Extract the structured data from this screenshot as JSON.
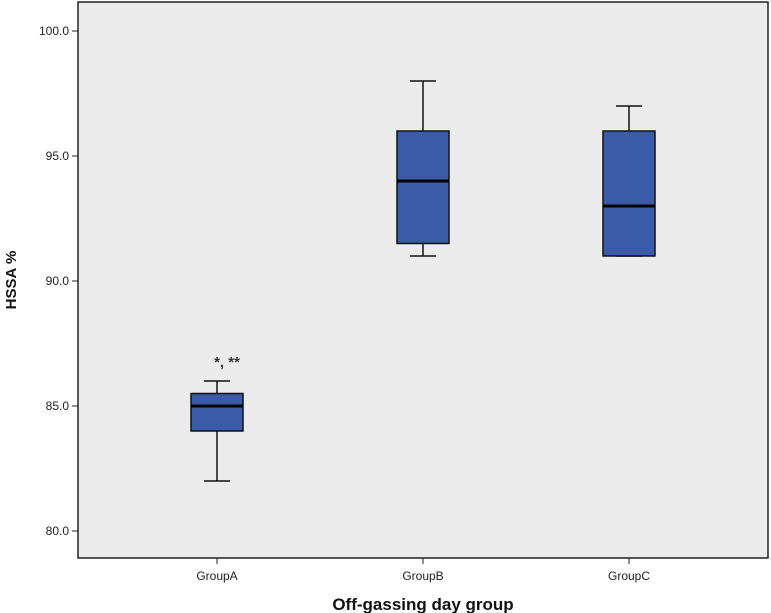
{
  "colors": {
    "plot_background": "#ececec",
    "box_fill": "#3b5ba8",
    "box_stroke": "#111111",
    "median": "#000000"
  },
  "chart_data": {
    "type": "box",
    "xlabel": "Off-gassing day group",
    "ylabel": "HSSA %",
    "ylim": [
      79.0,
      101.0
    ],
    "yticks": [
      "80.0",
      "85.0",
      "90.0",
      "95.0",
      "100.0"
    ],
    "grid": false,
    "categories": [
      "GroupA",
      "GroupB",
      "GroupC"
    ],
    "boxes": [
      {
        "category": "GroupA",
        "min": 82.0,
        "q1": 84.0,
        "median": 85.0,
        "q3": 85.5,
        "max": 86.0,
        "annotation": "*, **"
      },
      {
        "category": "GroupB",
        "min": 91.0,
        "q1": 91.5,
        "median": 94.0,
        "q3": 96.0,
        "max": 98.0,
        "annotation": ""
      },
      {
        "category": "GroupC",
        "min": 91.0,
        "q1": 91.0,
        "median": 93.0,
        "q3": 96.0,
        "max": 97.0,
        "annotation": ""
      }
    ]
  }
}
